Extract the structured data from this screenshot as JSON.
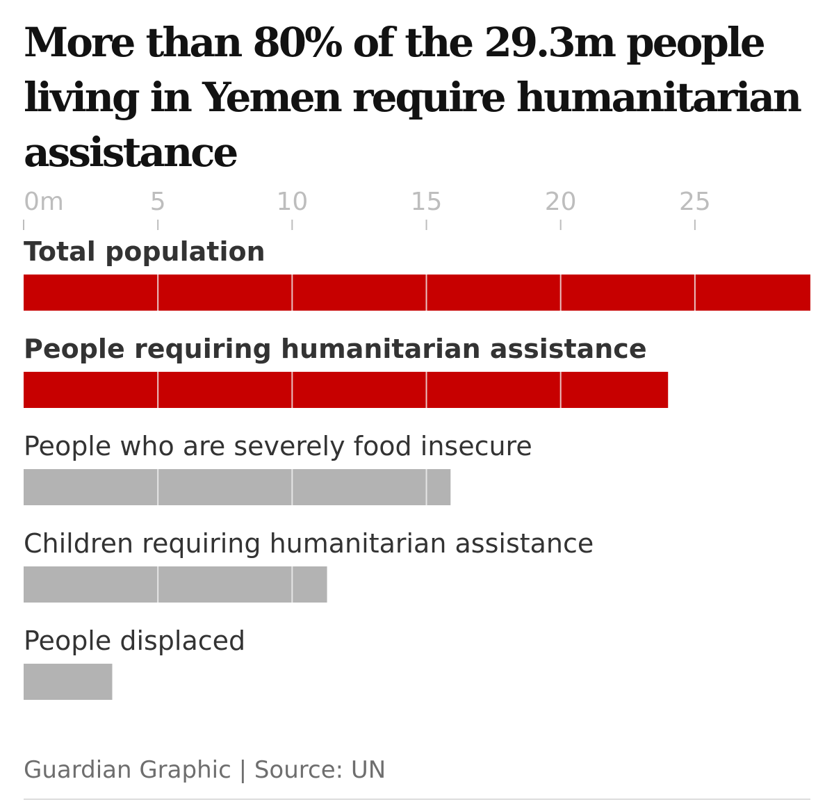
{
  "title": "More than 80% of the 29.3m people living in Yemen require humanitarian assistance",
  "source": "Guardian Graphic | Source: UN",
  "chart_data": {
    "type": "bar",
    "orientation": "horizontal",
    "title": "More than 80% of the 29.3m people living in Yemen require humanitarian assistance",
    "x_axis": {
      "ticks": [
        0,
        5,
        10,
        15,
        20,
        25
      ],
      "tick_labels": [
        "0m",
        "5",
        "10",
        "15",
        "20",
        "25"
      ],
      "range": [
        0,
        29.3
      ],
      "unit": "m"
    },
    "categories": [
      "Total population",
      "People requiring humanitarian assistance",
      "People who are severely food insecure",
      "Children requiring humanitarian assistance",
      "People displaced"
    ],
    "values": [
      29.3,
      24.0,
      15.9,
      11.3,
      3.3
    ],
    "highlighted": [
      true,
      true,
      false,
      false,
      false
    ],
    "colors": {
      "highlight": "#c70000",
      "default": "#b3b3b3",
      "gridline": "#f3f3f3",
      "axis_tick": "#bdbdbd"
    }
  }
}
